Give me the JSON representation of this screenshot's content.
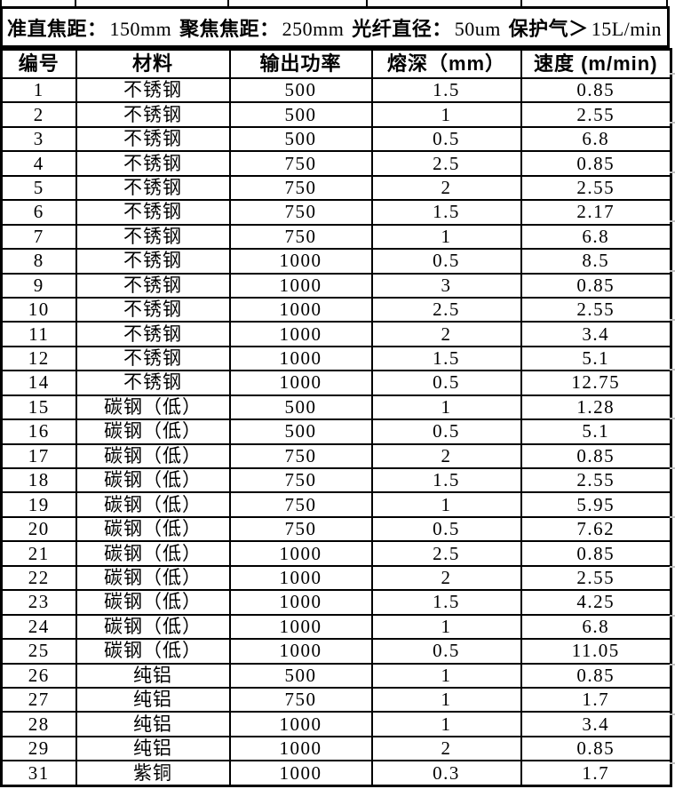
{
  "page": {
    "background": "#ffffff",
    "border_color": "#000000",
    "gridline_tick_color": "#bdbdbd"
  },
  "header": {
    "items": [
      {
        "label": "准直焦距：",
        "value": "150mm"
      },
      {
        "label": "聚焦焦距：",
        "value": "250mm"
      },
      {
        "label": "光纤直径：",
        "value": "50um"
      },
      {
        "label": "保护气＞",
        "value": "15L/min"
      }
    ]
  },
  "table": {
    "columns": [
      "编号",
      "材料",
      "输出功率",
      "熔深（mm）",
      "速度 (m/min)"
    ],
    "rows": [
      [
        "1",
        "不锈钢",
        "500",
        "1.5",
        "0.85"
      ],
      [
        "2",
        "不锈钢",
        "500",
        "1",
        "2.55"
      ],
      [
        "3",
        "不锈钢",
        "500",
        "0.5",
        "6.8"
      ],
      [
        "4",
        "不锈钢",
        "750",
        "2.5",
        "0.85"
      ],
      [
        "5",
        "不锈钢",
        "750",
        "2",
        "2.55"
      ],
      [
        "6",
        "不锈钢",
        "750",
        "1.5",
        "2.17"
      ],
      [
        "7",
        "不锈钢",
        "750",
        "1",
        "6.8"
      ],
      [
        "8",
        "不锈钢",
        "1000",
        "0.5",
        "8.5"
      ],
      [
        "9",
        "不锈钢",
        "1000",
        "3",
        "0.85"
      ],
      [
        "10",
        "不锈钢",
        "1000",
        "2.5",
        "2.55"
      ],
      [
        "11",
        "不锈钢",
        "1000",
        "2",
        "3.4"
      ],
      [
        "12",
        "不锈钢",
        "1000",
        "1.5",
        "5.1"
      ],
      [
        "14",
        "不锈钢",
        "1000",
        "0.5",
        "12.75"
      ],
      [
        "15",
        "碳钢（低）",
        "500",
        "1",
        "1.28"
      ],
      [
        "16",
        "碳钢（低）",
        "500",
        "0.5",
        "5.1"
      ],
      [
        "17",
        "碳钢（低）",
        "750",
        "2",
        "0.85"
      ],
      [
        "18",
        "碳钢（低）",
        "750",
        "1.5",
        "2.55"
      ],
      [
        "19",
        "碳钢（低）",
        "750",
        "1",
        "5.95"
      ],
      [
        "20",
        "碳钢（低）",
        "750",
        "0.5",
        "7.62"
      ],
      [
        "21",
        "碳钢（低）",
        "1000",
        "2.5",
        "0.85"
      ],
      [
        "22",
        "碳钢（低）",
        "1000",
        "2",
        "2.55"
      ],
      [
        "23",
        "碳钢（低）",
        "1000",
        "1.5",
        "4.25"
      ],
      [
        "24",
        "碳钢（低）",
        "1000",
        "1",
        "6.8"
      ],
      [
        "25",
        "碳钢（低）",
        "1000",
        "0.5",
        "11.05"
      ],
      [
        "26",
        "纯铝",
        "500",
        "1",
        "0.85"
      ],
      [
        "27",
        "纯铝",
        "750",
        "1",
        "1.7"
      ],
      [
        "28",
        "纯铝",
        "1000",
        "1",
        "3.4"
      ],
      [
        "29",
        "纯铝",
        "1000",
        "2",
        "0.85"
      ],
      [
        "31",
        "紫铜",
        "1000",
        "0.3",
        "1.7"
      ]
    ]
  }
}
